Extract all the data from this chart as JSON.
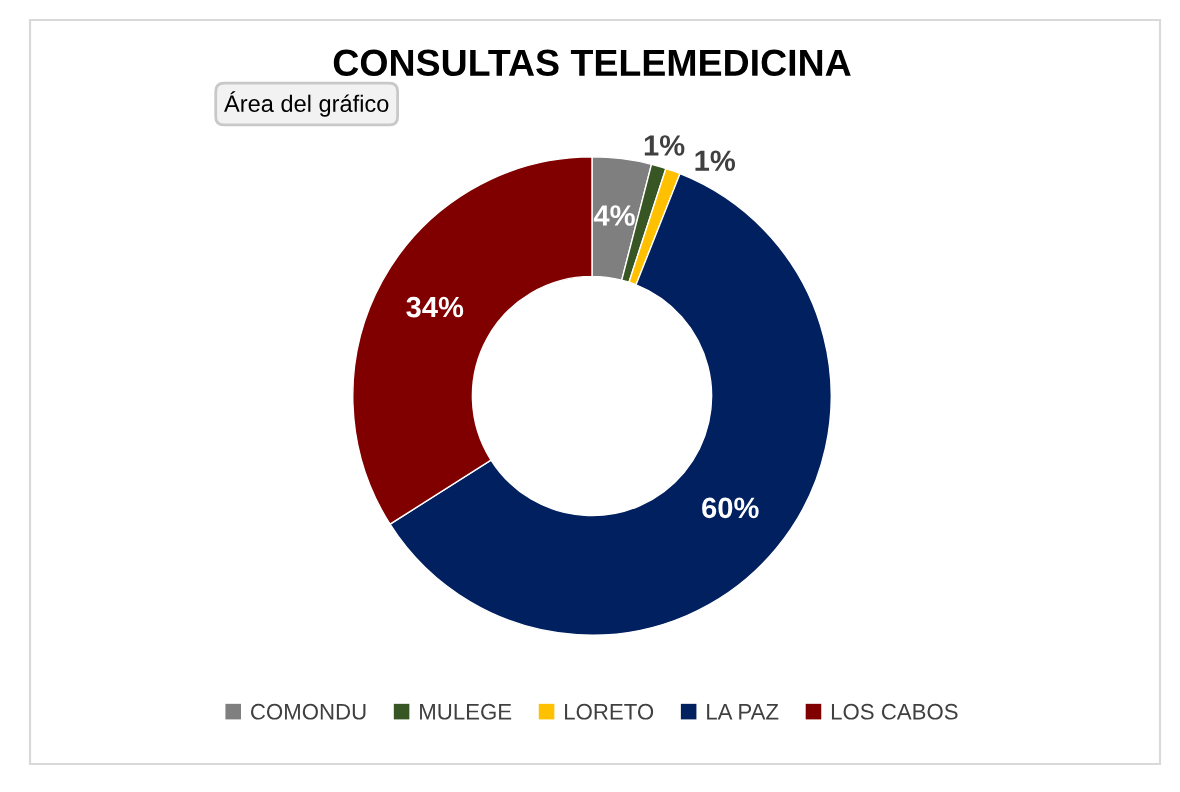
{
  "chart_data": {
    "type": "donut",
    "title": "CONSULTAS TELEMEDICINA",
    "categories": [
      "COMONDU",
      "MULEGE",
      "LORETO",
      "LA PAZ",
      "LOS CABOS"
    ],
    "values": [
      4,
      1,
      1,
      60,
      34
    ],
    "colors": [
      "#7f7f7f",
      "#375623",
      "#ffc000",
      "#002060",
      "#800000"
    ],
    "value_labels": [
      "4%",
      "1%",
      "1%",
      "60%",
      "34%"
    ],
    "legend": "bottom",
    "annotations": [
      "Área del gráfico"
    ]
  }
}
